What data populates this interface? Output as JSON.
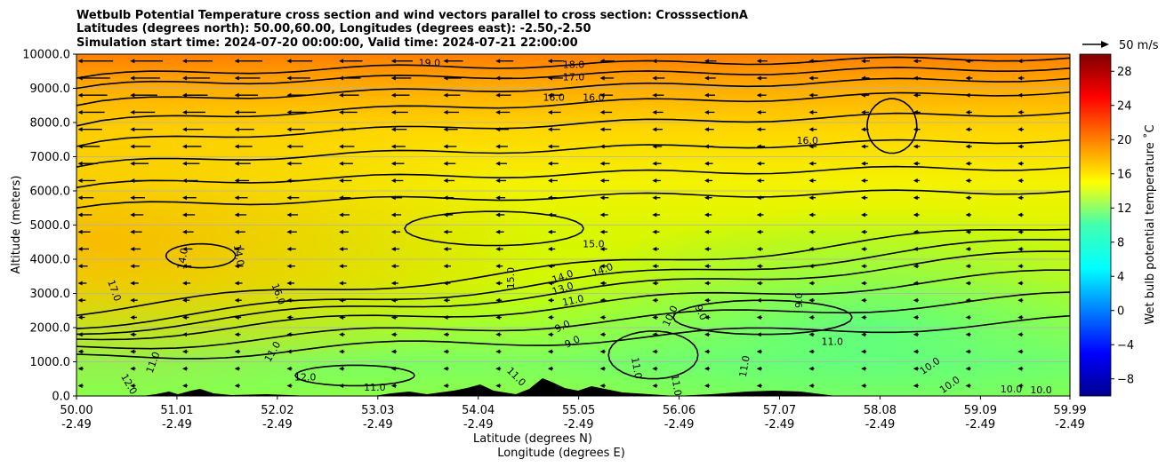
{
  "chart_data": {
    "type": "heatmap",
    "title_lines": [
      "Wetbulb Potential Temperature cross section and wind vectors parallel to cross section: CrosssectionA",
      "Latitudes (degrees north): 50.00,60.00, Longitudes (degrees east): -2.50,-2.50",
      "Simulation start time: 2024-07-20 00:00:00, Valid time: 2024-07-21 22:00:00"
    ],
    "xlabel_lines": [
      "Latitude (degrees N)",
      "Longitude (degrees E)"
    ],
    "ylabel": "Altitude (meters)",
    "x_ticks": [
      {
        "lat": "50.00",
        "lon": "-2.49"
      },
      {
        "lat": "51.01",
        "lon": "-2.49"
      },
      {
        "lat": "52.02",
        "lon": "-2.49"
      },
      {
        "lat": "53.03",
        "lon": "-2.49"
      },
      {
        "lat": "54.04",
        "lon": "-2.49"
      },
      {
        "lat": "55.05",
        "lon": "-2.49"
      },
      {
        "lat": "56.06",
        "lon": "-2.49"
      },
      {
        "lat": "57.07",
        "lon": "-2.49"
      },
      {
        "lat": "58.08",
        "lon": "-2.49"
      },
      {
        "lat": "59.09",
        "lon": "-2.49"
      },
      {
        "lat": "59.99",
        "lon": "-2.49"
      }
    ],
    "xlim": [
      50.0,
      59.99
    ],
    "y_ticks": [
      0,
      1000,
      2000,
      3000,
      4000,
      5000,
      6000,
      7000,
      8000,
      9000,
      10000
    ],
    "y_tick_labels": [
      "0.0",
      "1000.0",
      "2000.0",
      "3000.0",
      "4000.0",
      "5000.0",
      "6000.0",
      "7000.0",
      "8000.0",
      "9000.0",
      "10000.0"
    ],
    "ylim": [
      0,
      10000
    ],
    "grid": "horizontal",
    "colorbar": {
      "label": "Wet bulb potential temperature ˚C",
      "range": [
        -10,
        30
      ],
      "ticks": [
        -8,
        -4,
        0,
        4,
        8,
        12,
        16,
        20,
        24,
        28
      ],
      "colormap": "jet"
    },
    "quiver_key": {
      "label": "50 m/s",
      "value": 50
    },
    "contour_levels": [
      9,
      10,
      11,
      12,
      13,
      14,
      15,
      16,
      17,
      18,
      19
    ],
    "contour_labels": [
      {
        "text": "19.0",
        "lat": 53.55,
        "alt": 9650,
        "rot": 0
      },
      {
        "text": "18.0",
        "lat": 55.0,
        "alt": 9600,
        "rot": 0
      },
      {
        "text": "17.0",
        "lat": 55.0,
        "alt": 9230,
        "rot": 0
      },
      {
        "text": "16.0",
        "lat": 54.8,
        "alt": 8630,
        "rot": 0
      },
      {
        "text": "16.0",
        "lat": 55.2,
        "alt": 8630,
        "rot": 0
      },
      {
        "text": "16.0",
        "lat": 57.35,
        "alt": 7380,
        "rot": 0
      },
      {
        "text": "15.0",
        "lat": 55.2,
        "alt": 4350,
        "rot": 0
      },
      {
        "text": "15.0",
        "lat": 54.4,
        "alt": 3450,
        "rot": -90
      },
      {
        "text": "14.0",
        "lat": 54.9,
        "alt": 3400,
        "rot": -20
      },
      {
        "text": "14.0",
        "lat": 55.3,
        "alt": 3600,
        "rot": -20
      },
      {
        "text": "13.0",
        "lat": 54.9,
        "alt": 3050,
        "rot": -18
      },
      {
        "text": "11.0",
        "lat": 55.0,
        "alt": 2700,
        "rot": -12
      },
      {
        "text": "10.0",
        "lat": 56.0,
        "alt": 2300,
        "rot": -65
      },
      {
        "text": "9.0",
        "lat": 56.25,
        "alt": 2400,
        "rot": 65
      },
      {
        "text": "9.0",
        "lat": 57.3,
        "alt": 2800,
        "rot": -90
      },
      {
        "text": "9.0",
        "lat": 54.9,
        "alt": 1950,
        "rot": -25
      },
      {
        "text": "9.0",
        "lat": 55.0,
        "alt": 1500,
        "rot": -25
      },
      {
        "text": "11.0",
        "lat": 57.6,
        "alt": 1500,
        "rot": 0
      },
      {
        "text": "10.0",
        "lat": 58.6,
        "alt": 800,
        "rot": -35
      },
      {
        "text": "10.0",
        "lat": 58.8,
        "alt": 250,
        "rot": -35
      },
      {
        "text": "10.0",
        "lat": 59.4,
        "alt": 100,
        "rot": 0
      },
      {
        "text": "10.0",
        "lat": 59.7,
        "alt": 80,
        "rot": 0
      },
      {
        "text": "11.0",
        "lat": 55.6,
        "alt": 800,
        "rot": 80
      },
      {
        "text": "11.0",
        "lat": 56.0,
        "alt": 300,
        "rot": 80
      },
      {
        "text": "11.0",
        "lat": 56.75,
        "alt": 850,
        "rot": -80
      },
      {
        "text": "17.0",
        "lat": 50.35,
        "alt": 3050,
        "rot": 70
      },
      {
        "text": "14.0",
        "lat": 51.1,
        "alt": 4000,
        "rot": -80
      },
      {
        "text": "14.0",
        "lat": 51.6,
        "alt": 4100,
        "rot": 80
      },
      {
        "text": "16.0",
        "lat": 52.0,
        "alt": 2950,
        "rot": 70
      },
      {
        "text": "11.0",
        "lat": 52.0,
        "alt": 1250,
        "rot": -60
      },
      {
        "text": "12.0",
        "lat": 52.3,
        "alt": 450,
        "rot": 0
      },
      {
        "text": "11.0",
        "lat": 50.8,
        "alt": 950,
        "rot": -70
      },
      {
        "text": "12.0",
        "lat": 50.5,
        "alt": 300,
        "rot": 60
      },
      {
        "text": "11.0",
        "lat": 53.0,
        "alt": 150,
        "rot": 0
      },
      {
        "text": "11.0",
        "lat": 54.4,
        "alt": 500,
        "rot": 45
      }
    ]
  }
}
